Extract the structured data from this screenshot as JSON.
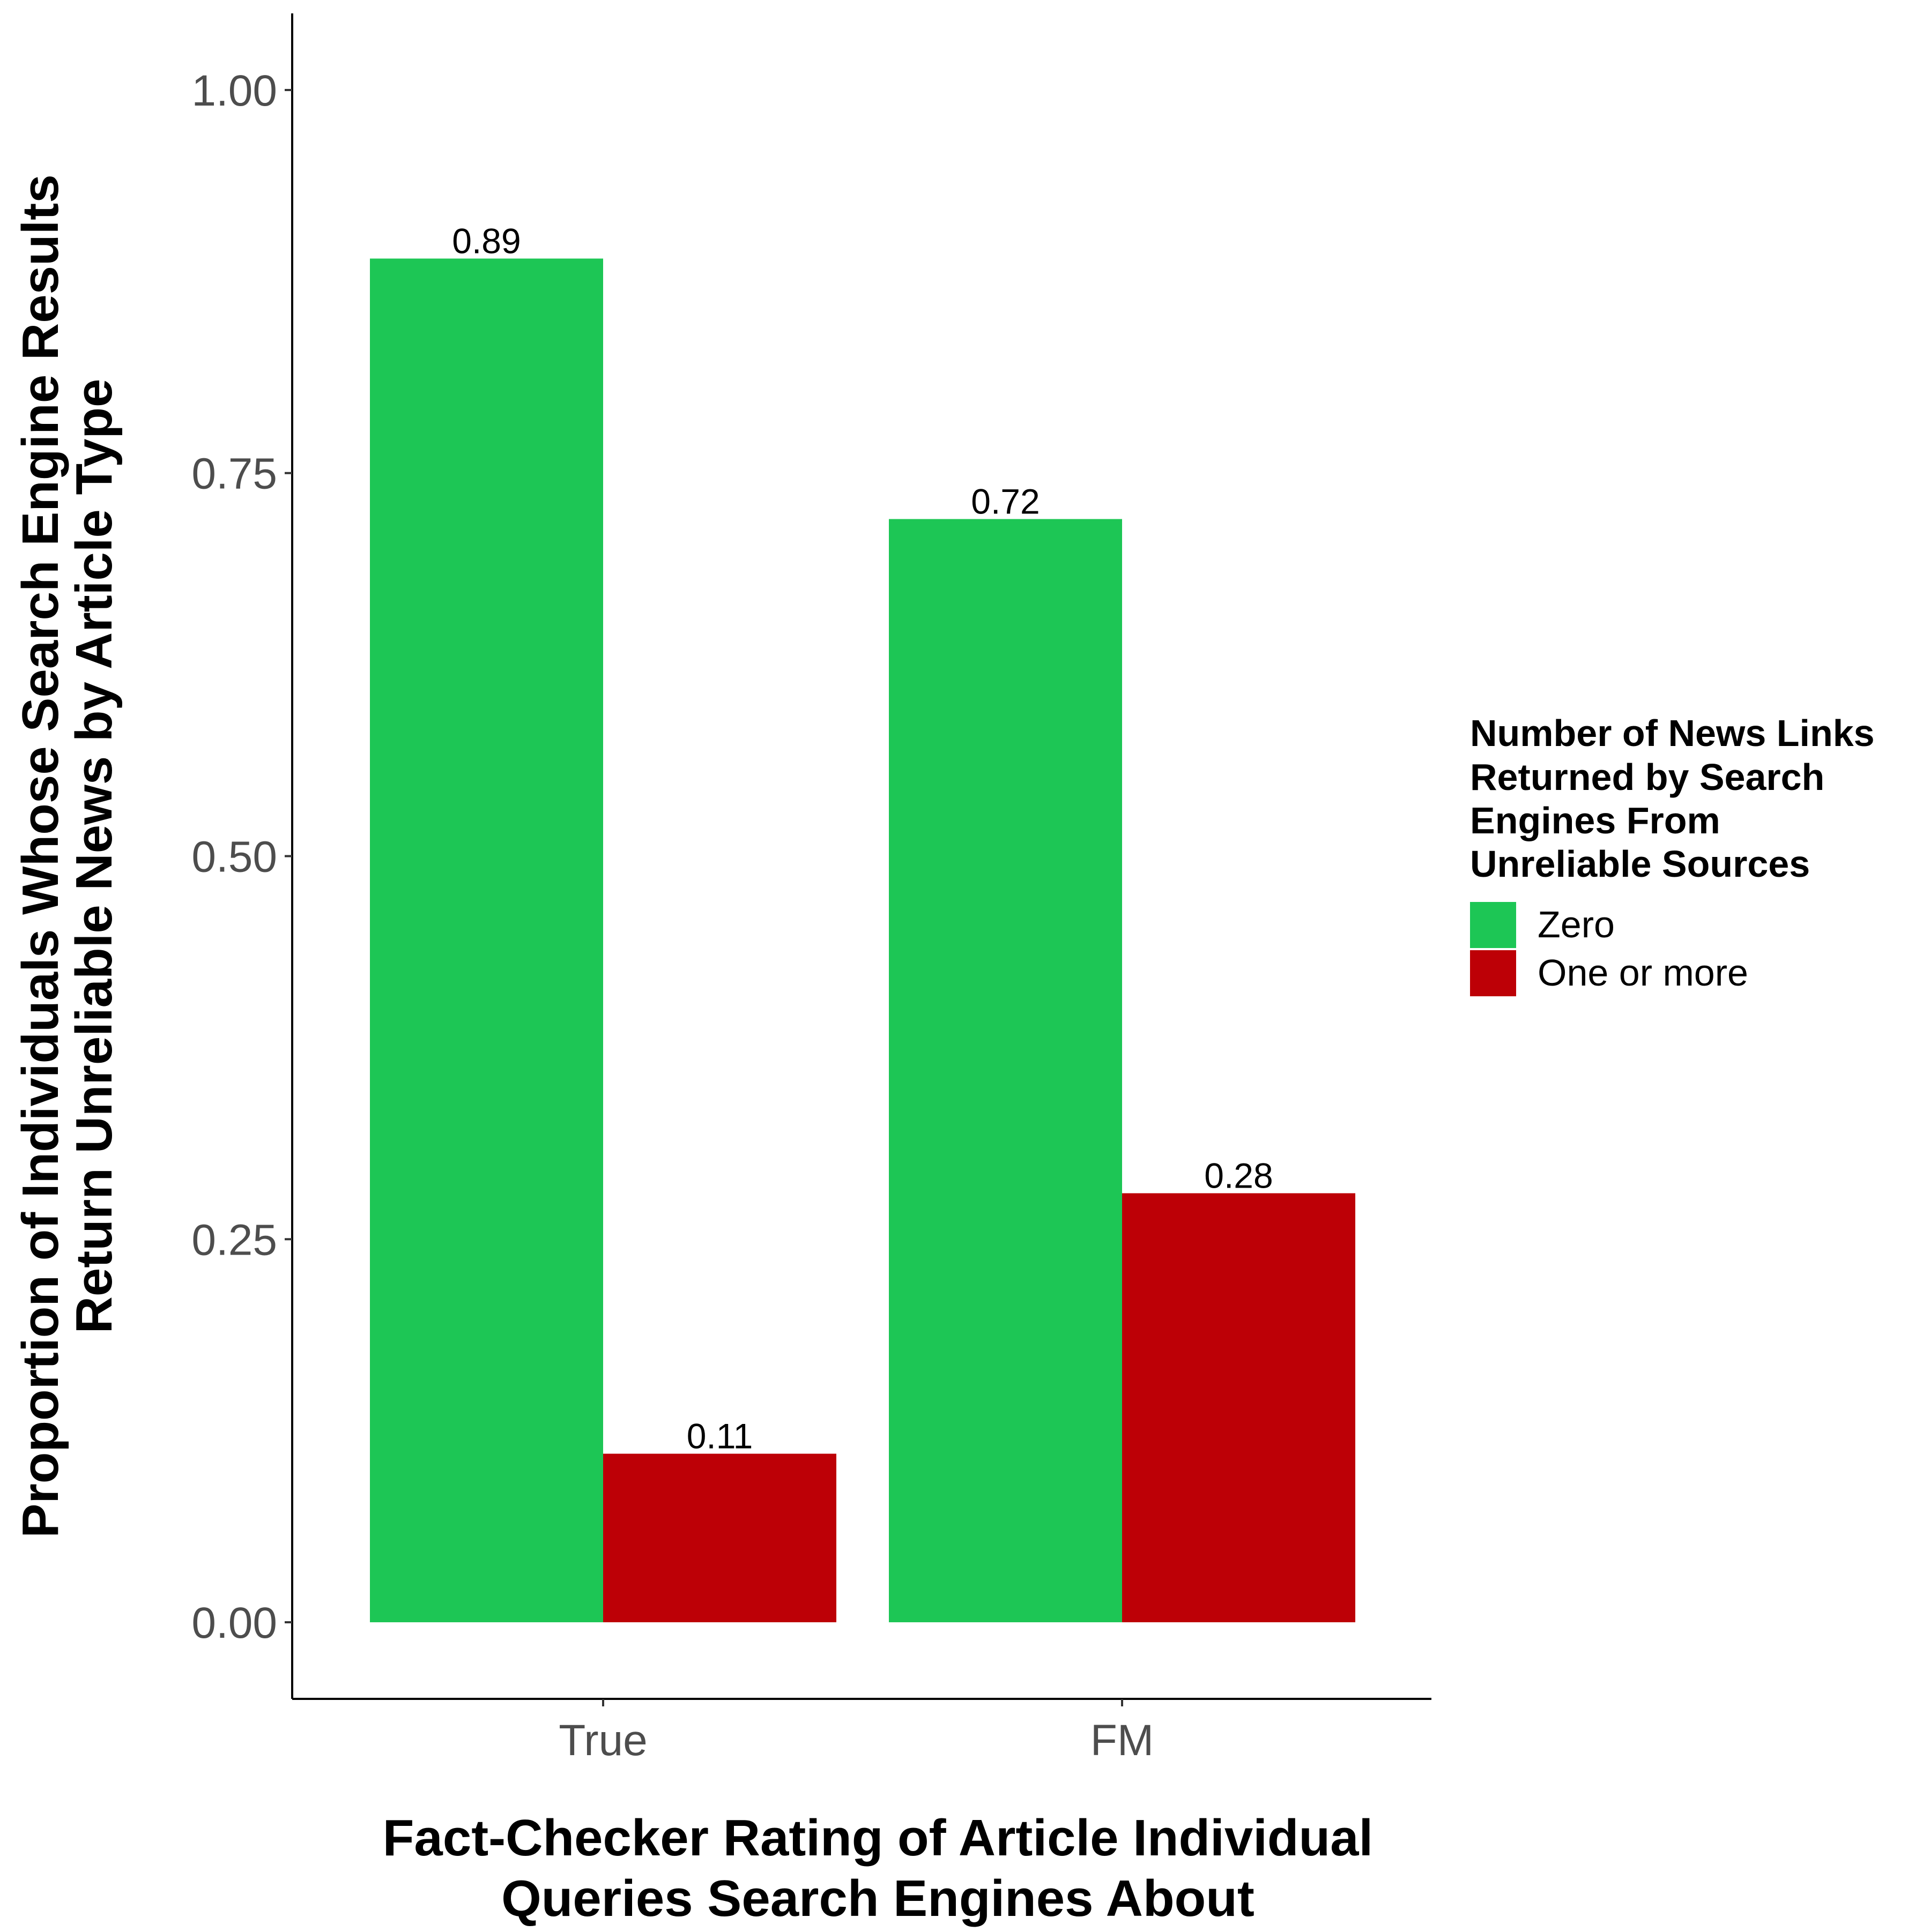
{
  "chart_data": {
    "type": "bar",
    "categories": [
      "True",
      "FM"
    ],
    "series": [
      {
        "name": "Zero",
        "values": [
          0.89,
          0.72
        ],
        "labels": [
          "0.89",
          "0.72"
        ],
        "color": "#1DC655"
      },
      {
        "name": "One or more",
        "values": [
          0.11,
          0.28
        ],
        "labels": [
          "0.11",
          "0.28"
        ],
        "color": "#BD0006"
      }
    ],
    "xlabel": [
      "Fact-Checker Rating of Article Individual",
      "Queries Search Engines About"
    ],
    "ylabel": [
      "Proportion of Individuals Whose Search Engine Results",
      "Return Unreliable News by Article Type"
    ],
    "ylim": [
      -0.05,
      1.05
    ],
    "yticks": [
      "0.00",
      "0.25",
      "0.50",
      "0.75",
      "1.00"
    ],
    "legend": {
      "title": [
        "Number of News Links",
        "Returned by Search",
        "Engines From",
        "Unreliable Sources"
      ],
      "position": "right"
    },
    "grid": false
  }
}
